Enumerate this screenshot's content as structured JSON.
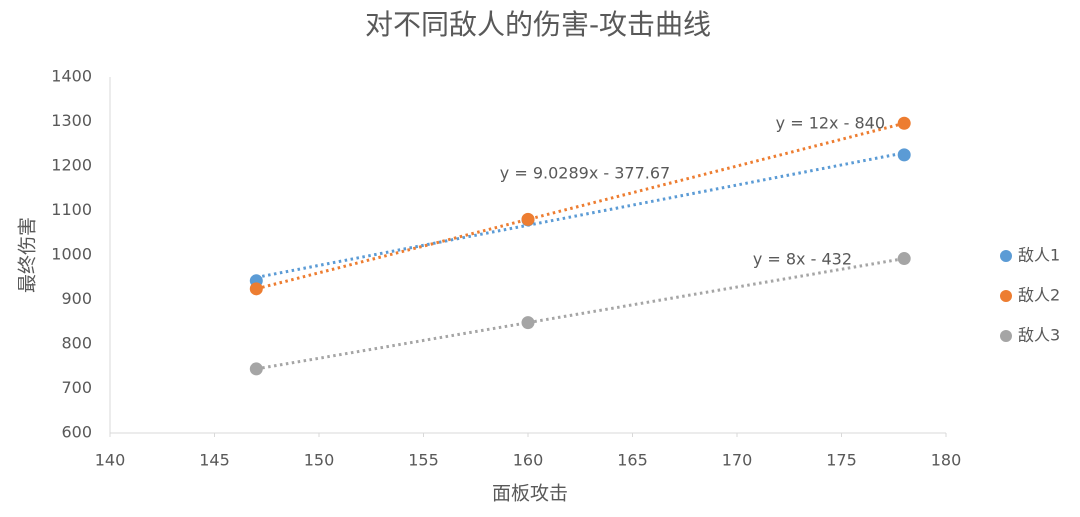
{
  "chart_data": {
    "type": "scatter",
    "title": "对不同敌人的伤害-攻击曲线",
    "x_label": "面板攻击",
    "y_label": "最终伤害",
    "x": [
      147,
      160,
      178
    ],
    "series": [
      {
        "name": "敌人1",
        "color": "#5b9bd5",
        "values": [
          942,
          1079,
          1225
        ],
        "trendline": {
          "slope": 9.0289,
          "intercept": -377.67,
          "label": "y = 9.0289x - 377.67"
        }
      },
      {
        "name": "敌人2",
        "color": "#ed7d31",
        "values": [
          924,
          1080,
          1296
        ],
        "trendline": {
          "slope": 12,
          "intercept": -840,
          "label": "y = 12x - 840"
        }
      },
      {
        "name": "敌人3",
        "color": "#a5a5a5",
        "values": [
          744,
          848,
          992
        ],
        "trendline": {
          "slope": 8,
          "intercept": -432,
          "label": "y = 8x - 432"
        }
      }
    ],
    "xlim": [
      140,
      180
    ],
    "xticks": [
      140,
      145,
      150,
      155,
      160,
      165,
      170,
      175,
      180
    ],
    "ylim": [
      600,
      1400
    ],
    "yticks": [
      600,
      700,
      800,
      900,
      1000,
      1100,
      1200,
      1300,
      1400
    ],
    "legend": "right",
    "grid": false
  }
}
